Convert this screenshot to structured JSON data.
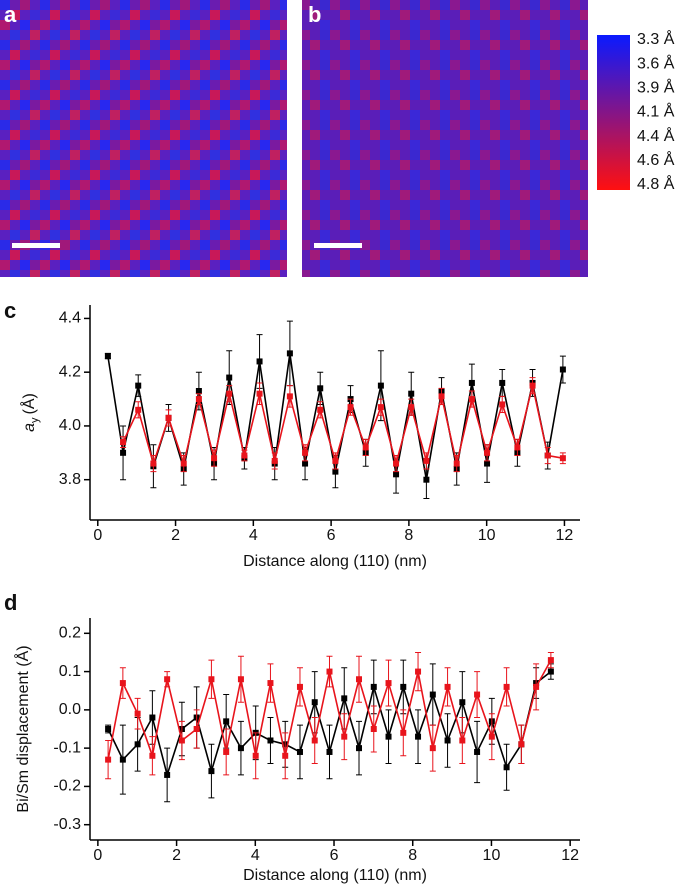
{
  "panels": {
    "a": "a",
    "b": "b"
  },
  "colorbar": {
    "labels": [
      "3.3 Å",
      "3.6 Å",
      "3.9 Å",
      "4.1 Å",
      "4.4 Å",
      "4.6 Å",
      "4.8 Å"
    ],
    "colors": [
      "#0a1aff",
      "#ff1010"
    ]
  },
  "chart_data": [
    {
      "type": "line",
      "panel_label": "c",
      "x_label": "Distance along (110) (nm)",
      "y_label_symbol": "a",
      "y_label_subscript": "y",
      "y_label_unit": "(Å)",
      "x": [
        0.26,
        0.65,
        1.04,
        1.43,
        1.82,
        2.21,
        2.6,
        2.99,
        3.38,
        3.77,
        4.16,
        4.55,
        4.94,
        5.33,
        5.72,
        6.11,
        6.5,
        6.89,
        7.28,
        7.67,
        8.06,
        8.45,
        8.84,
        9.23,
        9.62,
        10.01,
        10.4,
        10.79,
        11.18,
        11.57,
        11.96
      ],
      "series": [
        {
          "name": "black",
          "color": "#000000",
          "values": [
            4.26,
            3.9,
            4.15,
            3.85,
            4.03,
            3.84,
            4.13,
            3.86,
            4.18,
            3.88,
            4.24,
            3.86,
            4.27,
            3.86,
            4.14,
            3.83,
            4.1,
            3.9,
            4.15,
            3.82,
            4.12,
            3.8,
            4.13,
            3.84,
            4.16,
            3.86,
            4.16,
            3.9,
            4.16,
            3.89,
            4.21
          ],
          "errors": [
            0.01,
            0.1,
            0.04,
            0.08,
            0.05,
            0.06,
            0.07,
            0.06,
            0.1,
            0.04,
            0.1,
            0.06,
            0.12,
            0.06,
            0.06,
            0.06,
            0.05,
            0.05,
            0.13,
            0.07,
            0.08,
            0.07,
            0.05,
            0.06,
            0.07,
            0.07,
            0.05,
            0.05,
            0.05,
            0.05,
            0.05
          ]
        },
        {
          "name": "red",
          "color": "#e8141c",
          "values": [
            null,
            3.94,
            4.06,
            3.86,
            4.03,
            3.86,
            4.1,
            3.88,
            4.12,
            3.89,
            4.12,
            3.87,
            4.11,
            3.9,
            4.06,
            3.87,
            4.07,
            3.92,
            4.07,
            3.86,
            4.07,
            3.87,
            4.11,
            3.86,
            4.1,
            3.9,
            4.08,
            3.92,
            4.15,
            3.89,
            3.88
          ],
          "errors": [
            null,
            0.02,
            0.03,
            0.03,
            0.03,
            0.03,
            0.02,
            0.03,
            0.03,
            0.02,
            0.04,
            0.03,
            0.04,
            0.03,
            0.03,
            0.03,
            0.03,
            0.03,
            0.03,
            0.03,
            0.03,
            0.03,
            0.03,
            0.03,
            0.03,
            0.03,
            0.03,
            0.03,
            0.03,
            0.03,
            0.02
          ]
        }
      ],
      "xlim": [
        -0.2,
        12.4
      ],
      "xticks": [
        0,
        2,
        4,
        6,
        8,
        10,
        12
      ],
      "ylim": [
        3.65,
        4.45
      ],
      "yticks": [
        3.8,
        {
          "value": 4,
          "label": "4.0"
        },
        4.2,
        4.4
      ]
    },
    {
      "type": "line",
      "panel_label": "d",
      "x_label": "Distance along (110) (nm)",
      "y_label": "Bi/Sm displacement (Å)",
      "x": [
        0.26,
        0.635,
        1.01,
        1.385,
        1.76,
        2.135,
        2.51,
        2.885,
        3.26,
        3.635,
        4.01,
        4.385,
        4.76,
        5.135,
        5.51,
        5.885,
        6.26,
        6.635,
        7.01,
        7.385,
        7.76,
        8.135,
        8.51,
        8.885,
        9.26,
        9.635,
        10.01,
        10.385,
        10.76,
        11.135,
        11.51
      ],
      "series": [
        {
          "name": "black",
          "color": "#000000",
          "values": [
            -0.05,
            -0.13,
            -0.09,
            -0.02,
            -0.17,
            -0.05,
            -0.02,
            -0.16,
            -0.03,
            -0.1,
            -0.06,
            -0.08,
            -0.09,
            -0.11,
            0.02,
            -0.11,
            0.03,
            -0.1,
            0.06,
            -0.07,
            0.06,
            -0.07,
            0.04,
            -0.08,
            0.02,
            -0.11,
            -0.03,
            -0.15,
            -0.09,
            0.07,
            0.1
          ],
          "errors": [
            0.01,
            0.09,
            0.07,
            0.07,
            0.07,
            0.07,
            0.08,
            0.07,
            0.07,
            0.07,
            0.07,
            0.06,
            0.06,
            0.07,
            0.08,
            0.07,
            0.08,
            0.07,
            0.07,
            0.07,
            0.07,
            0.07,
            0.08,
            0.07,
            0.08,
            0.08,
            0.06,
            0.06,
            0.05,
            0.04,
            0.02
          ]
        },
        {
          "name": "red",
          "color": "#e8141c",
          "values": [
            -0.13,
            0.07,
            -0.01,
            -0.12,
            0.08,
            -0.08,
            -0.05,
            0.08,
            -0.11,
            0.08,
            -0.12,
            0.07,
            -0.12,
            0.06,
            -0.08,
            0.1,
            -0.07,
            0.08,
            -0.05,
            0.07,
            -0.06,
            0.1,
            -0.1,
            0.06,
            -0.08,
            0.04,
            -0.07,
            0.06,
            -0.09,
            0.06,
            0.13
          ],
          "errors": [
            0.05,
            0.04,
            0.04,
            0.05,
            0.02,
            0.05,
            0.05,
            0.05,
            0.06,
            0.06,
            0.06,
            0.05,
            0.06,
            0.05,
            0.06,
            0.04,
            0.06,
            0.06,
            0.06,
            0.06,
            0.06,
            0.05,
            0.06,
            0.05,
            0.06,
            0.06,
            0.06,
            0.05,
            0.05,
            0.06,
            0.02
          ]
        }
      ],
      "xlim": [
        -0.2,
        12.25
      ],
      "xticks": [
        0,
        2,
        4,
        6,
        8,
        10,
        12
      ],
      "ylim": [
        -0.34,
        0.24
      ],
      "yticks": [
        -0.3,
        -0.2,
        -0.1,
        {
          "value": 0,
          "label": "0.0"
        },
        0.1,
        0.2
      ]
    }
  ]
}
